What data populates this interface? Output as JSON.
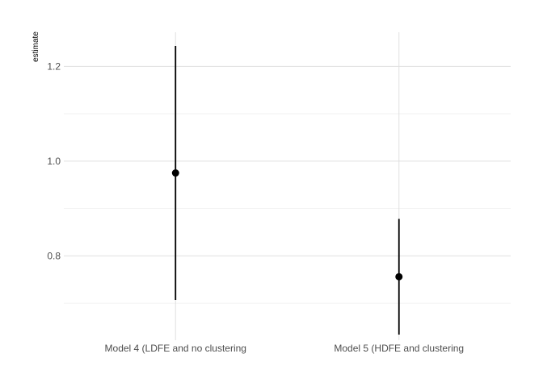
{
  "chart_data": {
    "type": "scatter",
    "title": "",
    "xlabel": "",
    "ylabel": "estimate",
    "categories": [
      "Model 4 (LDFE and no clustering",
      "Model 5 (HDFE and clustering"
    ],
    "points": [
      {
        "category": "Model 4 (LDFE and no clustering",
        "estimate": 0.975,
        "low": 0.707,
        "high": 1.243
      },
      {
        "category": "Model 5 (HDFE and clustering",
        "estimate": 0.756,
        "low": 0.634,
        "high": 0.878
      }
    ],
    "ylim": [
      0.622,
      1.272
    ],
    "yticks": [
      0.8,
      1.0,
      1.2
    ],
    "ytick_labels": [
      "0.8",
      "1.0",
      "1.2"
    ],
    "yminor": [
      0.7,
      0.9,
      1.1
    ],
    "grid": true,
    "legend": "none",
    "colors": {
      "point": "#000000",
      "grid": "#e0e0e0",
      "text": "#4d4d4d"
    }
  }
}
